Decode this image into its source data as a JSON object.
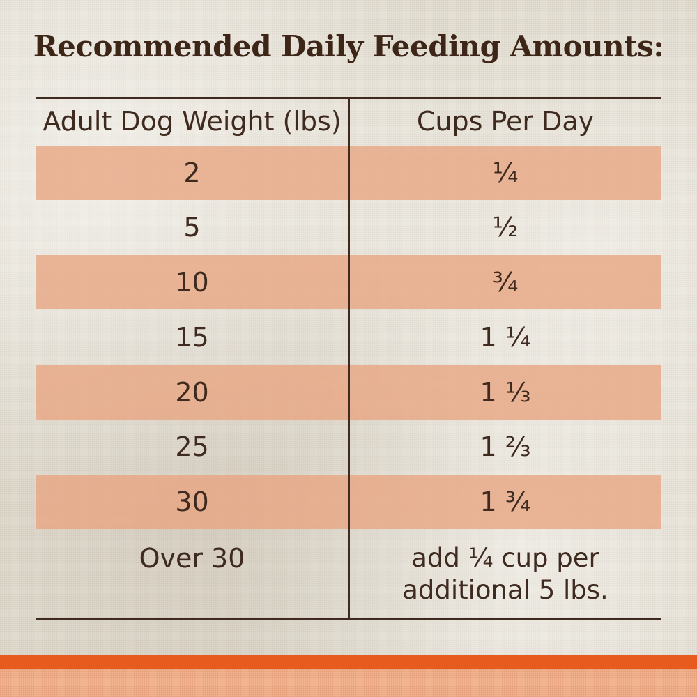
{
  "title": "Recommended Daily Feeding Amounts:",
  "table": {
    "headers": [
      "Adult Dog Weight (lbs)",
      "Cups Per Day"
    ],
    "rows": [
      {
        "weight": "2",
        "cups": "¼"
      },
      {
        "weight": "5",
        "cups": "½"
      },
      {
        "weight": "10",
        "cups": "¾"
      },
      {
        "weight": "15",
        "cups": "1 ¼"
      },
      {
        "weight": "20",
        "cups": "1 ⅓"
      },
      {
        "weight": "25",
        "cups": "1 ⅔"
      },
      {
        "weight": "30",
        "cups": "1 ¾"
      },
      {
        "weight": "Over 30",
        "cups": "add ¼ cup per\nadditional 5 lbs."
      }
    ]
  },
  "colors": {
    "text_brown": "#3f2a1f",
    "row_shade": "#e8a480",
    "band_orange": "#e75c1e",
    "band_peach": "#f2b38f"
  }
}
